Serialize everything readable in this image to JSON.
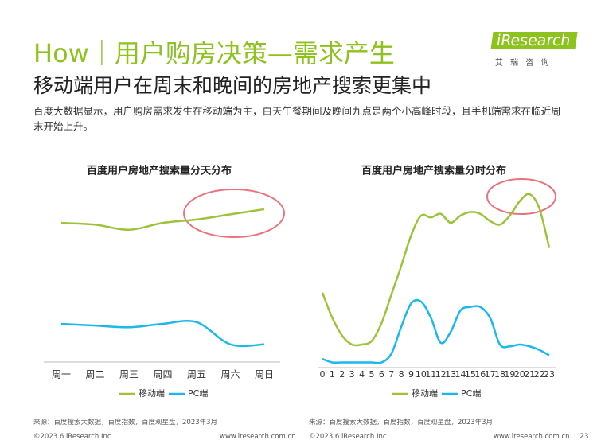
{
  "header": {
    "title": "How｜用户购房决策—需求产生",
    "subtitle": "移动端用户在周末和晚间的房地产搜索更集中",
    "description": "百度大数据显示，用户购房需求发生在移动端为主，白天午餐期间及晚间九点是两个小高峰时段，且手机端需求在临近周末开始上升。",
    "logo": "iResearch",
    "logo_cn": "艾 瑞 咨 询"
  },
  "chart_data": [
    {
      "type": "line",
      "title": "百度用户房地产搜索量分天分布",
      "categories": [
        "周一",
        "周二",
        "周三",
        "周四",
        "周五",
        "周六",
        "周日"
      ],
      "series": [
        {
          "name": "移动端",
          "color": "#9dc33b",
          "values": [
            79,
            78,
            75,
            79,
            81,
            84,
            87
          ]
        },
        {
          "name": "PC端",
          "color": "#1cb8ea",
          "values": [
            20,
            19,
            18,
            20,
            21,
            8,
            8
          ]
        }
      ],
      "ylim": [
        0,
        100
      ],
      "source": "来源：百度搜索大数据，百度指数，百度观星盘，2023年3月"
    },
    {
      "type": "line",
      "title": "百度用户房地产搜索量分时分布",
      "categories": [
        "0",
        "1",
        "2",
        "3",
        "4",
        "5",
        "6",
        "7",
        "8",
        "9",
        "10",
        "11",
        "12",
        "13",
        "14",
        "15",
        "16",
        "17",
        "18",
        "19",
        "20",
        "21",
        "22",
        "23"
      ],
      "series": [
        {
          "name": "移动端",
          "color": "#9dc33b",
          "values": [
            41,
            27,
            17,
            12,
            12,
            14,
            24,
            40,
            56,
            73,
            84,
            83,
            85,
            80,
            84,
            86,
            85,
            81,
            79,
            84,
            92,
            96,
            88,
            66
          ]
        },
        {
          "name": "PC端",
          "color": "#1cb8ea",
          "values": [
            4,
            2,
            2,
            2,
            2,
            2,
            2,
            7,
            22,
            35,
            36,
            27,
            13,
            19,
            31,
            33,
            33,
            27,
            12,
            11,
            12,
            11,
            9,
            6
          ]
        }
      ],
      "ylim": [
        0,
        100
      ],
      "source": "来源：百度搜索大数据，百度指数，百度观星盘，2023年3月"
    }
  ],
  "footer": {
    "copyright_left": "©2023.6 iResearch Inc.",
    "url_left": "www.iresearch.com.cn",
    "copyright_right": "©2023.6 iResearch Inc.",
    "url_right": "www.iresearch.com.cn",
    "page": "23"
  }
}
